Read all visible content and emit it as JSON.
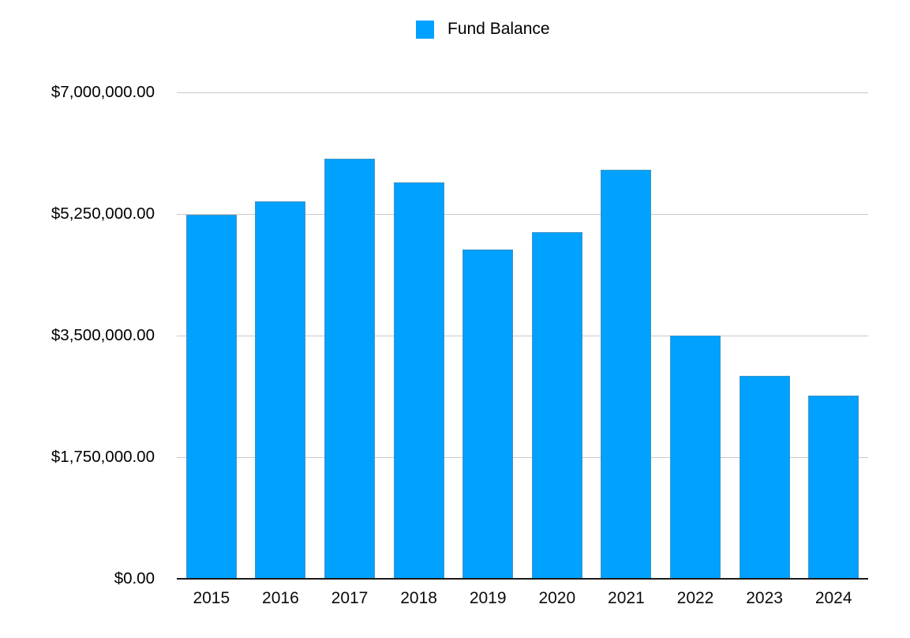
{
  "legend": {
    "label": "Fund Balance"
  },
  "chart_data": {
    "type": "bar",
    "title": "",
    "series_name": "Fund Balance",
    "categories": [
      "2015",
      "2016",
      "2017",
      "2018",
      "2019",
      "2020",
      "2021",
      "2022",
      "2023",
      "2024"
    ],
    "values": [
      5240000,
      5430000,
      6040000,
      5700000,
      4740000,
      4990000,
      5890000,
      3500000,
      2920000,
      2640000
    ],
    "ylim": [
      0,
      7000000
    ],
    "yticks": [
      {
        "value": 0,
        "label": "$0.00"
      },
      {
        "value": 1750000,
        "label": "$1,750,000.00"
      },
      {
        "value": 3500000,
        "label": "$3,500,000.00"
      },
      {
        "value": 5250000,
        "label": "$5,250,000.00"
      },
      {
        "value": 7000000,
        "label": "$7,000,000.00"
      }
    ],
    "grid": true,
    "legend_position": "top-center",
    "bar_color": "#00A1FF",
    "gridline_color": "#C9C9C9",
    "axis_color": "#1A1A1A",
    "text_color": "#000000"
  }
}
